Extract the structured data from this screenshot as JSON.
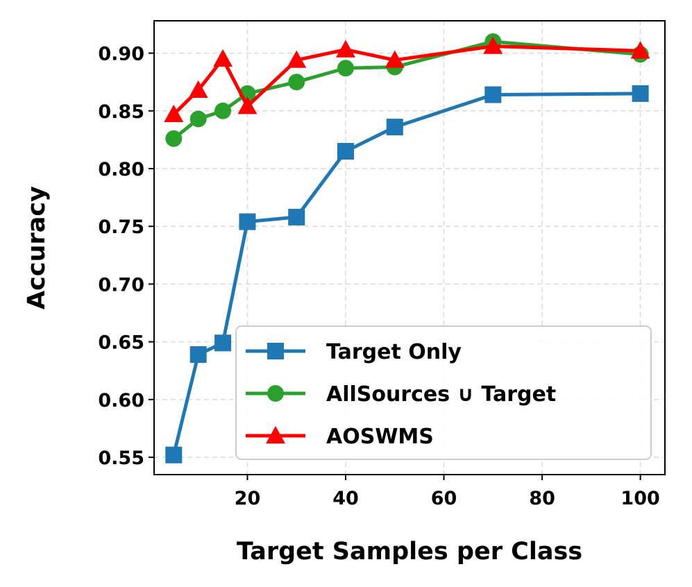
{
  "chart_data": {
    "type": "line",
    "title": "",
    "xlabel": "Target Samples per Class",
    "ylabel": "Accuracy",
    "xlim": [
      1,
      105
    ],
    "ylim": [
      0.535,
      0.928
    ],
    "xticks": [
      20,
      40,
      60,
      80,
      100
    ],
    "xtick_labels": [
      "20",
      "40",
      "60",
      "80",
      "100"
    ],
    "yticks": [
      0.55,
      0.6,
      0.65,
      0.7,
      0.75,
      0.8,
      0.85,
      0.9
    ],
    "ytick_labels": [
      "0.55",
      "0.60",
      "0.65",
      "0.70",
      "0.75",
      "0.80",
      "0.85",
      "0.90"
    ],
    "grid": true,
    "legend_position": "lower-right",
    "series": [
      {
        "name": "Target Only",
        "color": "#1f77b4",
        "marker": "square",
        "x": [
          5,
          10,
          15,
          20,
          30,
          40,
          50,
          70,
          100
        ],
        "y": [
          0.552,
          0.639,
          0.649,
          0.754,
          0.758,
          0.815,
          0.836,
          0.864,
          0.865
        ]
      },
      {
        "name": "AllSources ∪ Target",
        "color": "#2ca02c",
        "marker": "circle",
        "x": [
          5,
          10,
          15,
          20,
          30,
          40,
          50,
          70,
          100
        ],
        "y": [
          0.826,
          0.843,
          0.85,
          0.865,
          0.875,
          0.887,
          0.888,
          0.91,
          0.899
        ]
      },
      {
        "name": "AOSWMS",
        "color": "#ff0000",
        "marker": "triangle",
        "x": [
          5,
          10,
          15,
          20,
          30,
          40,
          50,
          70,
          100
        ],
        "y": [
          0.847,
          0.868,
          0.895,
          0.854,
          0.894,
          0.903,
          0.894,
          0.906,
          0.902
        ]
      }
    ]
  }
}
